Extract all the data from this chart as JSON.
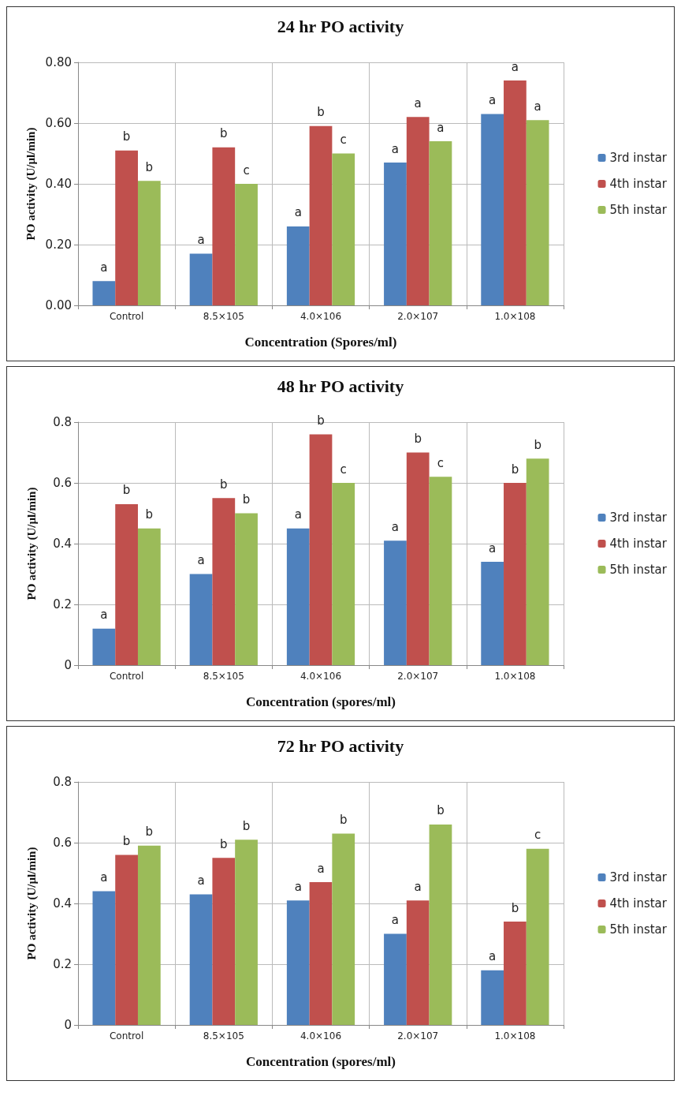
{
  "chart_data": [
    {
      "type": "bar",
      "title": "24 hr PO activity",
      "xlabel": "Concentration (Spores/ml)",
      "ylabel": "PO activity (U/µl/min)",
      "categories": [
        "Control",
        "8.5×105",
        "4.0×106",
        "2.0×107",
        "1.0×108"
      ],
      "series": [
        {
          "name": "3rd instar",
          "color": "#4f81bd",
          "values": [
            0.08,
            0.17,
            0.26,
            0.47,
            0.63
          ],
          "value_labels": [
            "a",
            "a",
            "a",
            "a",
            "a"
          ]
        },
        {
          "name": "4th instar",
          "color": "#c0504d",
          "values": [
            0.51,
            0.52,
            0.59,
            0.62,
            0.74
          ],
          "value_labels": [
            "b",
            "b",
            "b",
            "a",
            "a"
          ]
        },
        {
          "name": "5th instar",
          "color": "#9bbb59",
          "values": [
            0.41,
            0.4,
            0.5,
            0.54,
            0.61
          ],
          "value_labels": [
            "b",
            "c",
            "c",
            "a",
            "a"
          ]
        }
      ],
      "ylim": [
        0,
        0.8
      ],
      "yticks": [
        {
          "value": 0,
          "label": "0.00"
        },
        {
          "value": 0.2,
          "label": "0.20"
        },
        {
          "value": 0.4,
          "label": "0.40"
        },
        {
          "value": 0.6,
          "label": "0.60"
        },
        {
          "value": 0.8,
          "label": "0.80"
        }
      ],
      "grid": true,
      "legend": "right"
    },
    {
      "type": "bar",
      "title": "48 hr PO activity",
      "xlabel": "Concentration (spores/ml)",
      "ylabel": "PO activity (U/µl/min)",
      "categories": [
        "Control",
        "8.5×105",
        "4.0×106",
        "2.0×107",
        "1.0×108"
      ],
      "series": [
        {
          "name": "3rd instar",
          "color": "#4f81bd",
          "values": [
            0.12,
            0.3,
            0.45,
            0.41,
            0.34
          ],
          "value_labels": [
            "a",
            "a",
            "a",
            "a",
            "a"
          ]
        },
        {
          "name": "4th instar",
          "color": "#c0504d",
          "values": [
            0.53,
            0.55,
            0.76,
            0.7,
            0.6
          ],
          "value_labels": [
            "b",
            "b",
            "b",
            "b",
            "b"
          ]
        },
        {
          "name": "5th instar",
          "color": "#9bbb59",
          "values": [
            0.45,
            0.5,
            0.6,
            0.62,
            0.68
          ],
          "value_labels": [
            "b",
            "b",
            "c",
            "c",
            "b"
          ]
        }
      ],
      "ylim": [
        0,
        0.8
      ],
      "yticks": [
        0,
        0.2,
        0.4,
        0.6,
        0.8
      ],
      "grid": true,
      "legend": "right"
    },
    {
      "type": "bar",
      "title": "72 hr PO activity",
      "xlabel": "Concentration (spores/ml)",
      "ylabel": "PO activity (U/µl/min)",
      "categories": [
        "Control",
        "8.5×105",
        "4.0×106",
        "2.0×107",
        "1.0×108"
      ],
      "series": [
        {
          "name": "3rd instar",
          "color": "#4f81bd",
          "values": [
            0.44,
            0.43,
            0.41,
            0.3,
            0.18
          ],
          "value_labels": [
            "a",
            "a",
            "a",
            "a",
            "a"
          ]
        },
        {
          "name": "4th instar",
          "color": "#c0504d",
          "values": [
            0.56,
            0.55,
            0.47,
            0.41,
            0.34
          ],
          "value_labels": [
            "b",
            "b",
            "a",
            "a",
            "b"
          ]
        },
        {
          "name": "5th instar",
          "color": "#9bbb59",
          "values": [
            0.59,
            0.61,
            0.63,
            0.66,
            0.58
          ],
          "value_labels": [
            "b",
            "b",
            "b",
            "b",
            "c"
          ]
        }
      ],
      "ylim": [
        0,
        0.8
      ],
      "yticks": [
        0,
        0.2,
        0.4,
        0.6,
        0.8
      ],
      "grid": true,
      "legend": "right"
    }
  ]
}
